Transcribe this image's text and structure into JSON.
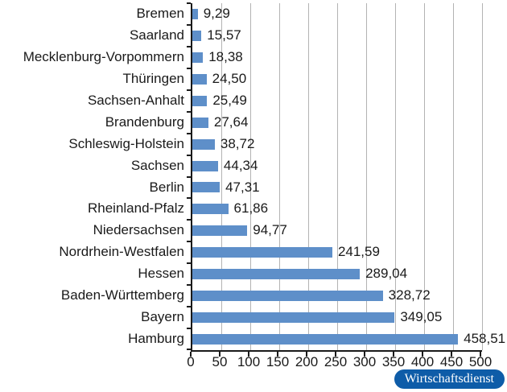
{
  "chart_data": {
    "type": "bar",
    "orientation": "horizontal",
    "title": "",
    "xlabel": "",
    "ylabel": "",
    "categories": [
      "Bremen",
      "Saarland",
      "Mecklenburg-Vorpommern",
      "Thüringen",
      "Sachsen-Anhalt",
      "Brandenburg",
      "Schleswig-Holstein",
      "Sachsen",
      "Berlin",
      "Rheinland-Pfalz",
      "Niedersachsen",
      "Nordrhein-Westfalen",
      "Hessen",
      "Baden-Württemberg",
      "Bayern",
      "Hamburg"
    ],
    "values": [
      9.29,
      15.57,
      18.38,
      24.5,
      25.49,
      27.64,
      38.72,
      44.34,
      47.31,
      61.86,
      94.77,
      241.59,
      289.04,
      328.72,
      349.05,
      458.51
    ],
    "value_labels": [
      "9,29",
      "15,57",
      "18,38",
      "24,50",
      "25,49",
      "27,64",
      "38,72",
      "44,34",
      "47,31",
      "61,86",
      "94,77",
      "241,59",
      "289,04",
      "328,72",
      "349,05",
      "458,51"
    ],
    "xlim": [
      0,
      500
    ],
    "x_ticks": [
      0,
      50,
      100,
      150,
      200,
      250,
      300,
      350,
      400,
      450,
      500
    ],
    "x_tick_labels": [
      "0",
      "50",
      "100",
      "150",
      "200",
      "250",
      "300",
      "350",
      "400",
      "450",
      "500"
    ],
    "grid": "vertical",
    "legend": "none",
    "bar_color": "#5e8fc9",
    "gridline_color": "#b3b3b3",
    "axis_color": "#1a1a1a"
  },
  "branding": {
    "badge_label": "Wirtschaftsdienst",
    "badge_color": "#0e5ca8",
    "badge_text_color": "#ffffff"
  }
}
